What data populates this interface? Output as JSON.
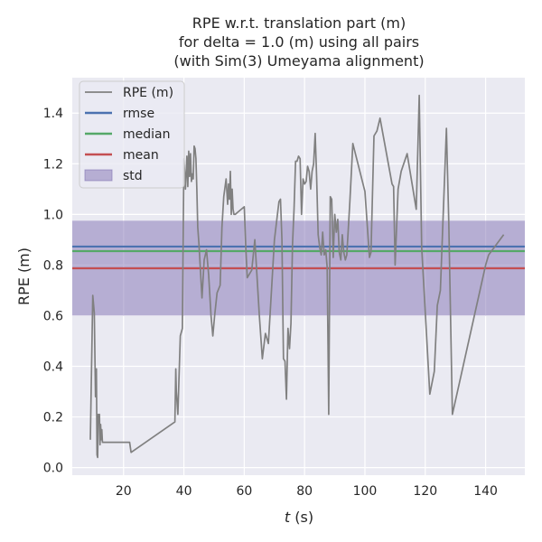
{
  "chart_data": {
    "type": "line",
    "title_lines": [
      "RPE w.r.t. translation part (m)",
      "for delta = 1.0 (m) using all pairs",
      "(with Sim(3) Umeyama alignment)"
    ],
    "xlabel_italic": "t",
    "xlabel_unit": " (s)",
    "ylabel": "RPE (m)",
    "xlim": [
      3,
      153
    ],
    "ylim": [
      -0.03,
      1.54
    ],
    "x_ticks": [
      20,
      40,
      60,
      80,
      100,
      120,
      140
    ],
    "x_tick_labels": [
      "20",
      "40",
      "60",
      "80",
      "100",
      "120",
      "140"
    ],
    "y_ticks": [
      0.0,
      0.2,
      0.4,
      0.6,
      0.8,
      1.0,
      1.2,
      1.4
    ],
    "y_tick_labels": [
      "0.0",
      "0.2",
      "0.4",
      "0.6",
      "0.8",
      "1.0",
      "1.2",
      "1.4"
    ],
    "grid": true,
    "legend_position": "upper-left",
    "legend": [
      {
        "label": "RPE (m)",
        "kind": "line",
        "color": "#808080"
      },
      {
        "label": "rmse",
        "kind": "line",
        "color": "#4c72b0"
      },
      {
        "label": "median",
        "kind": "line",
        "color": "#55a868"
      },
      {
        "label": "mean",
        "kind": "line",
        "color": "#c44e52"
      },
      {
        "label": "std",
        "kind": "patch",
        "color": "#8172b3"
      }
    ],
    "stats": {
      "rmse": 0.873,
      "median": 0.855,
      "mean": 0.787,
      "std": 0.187
    },
    "std_band": [
      0.6,
      0.975
    ],
    "series": [
      {
        "name": "RPE (m)",
        "color": "#808080",
        "x": [
          9.0,
          9.8,
          10.3,
          10.7,
          11.0,
          11.2,
          11.4,
          11.6,
          11.8,
          12.0,
          12.2,
          12.4,
          12.6,
          12.8,
          13.0,
          13.3,
          22.0,
          22.5,
          37.0,
          37.3,
          37.5,
          38.0,
          38.8,
          39.5,
          40.0,
          40.5,
          41.0,
          41.3,
          41.6,
          41.9,
          42.2,
          42.5,
          42.8,
          43.1,
          43.4,
          43.7,
          44.0,
          44.3,
          44.6,
          45.0,
          46.0,
          46.7,
          47.5,
          48.2,
          49.0,
          49.6,
          50.2,
          51.0,
          52.0,
          52.6,
          53.2,
          54.0,
          54.5,
          54.8,
          55.1,
          55.4,
          55.7,
          56.0,
          56.3,
          56.6,
          57.0,
          58.0,
          60.0,
          60.5,
          61.0,
          62.5,
          63.5,
          65.0,
          66.0,
          67.0,
          68.0,
          70.0,
          71.5,
          72.0,
          72.5,
          73.0,
          73.5,
          74.0,
          74.5,
          75.0,
          75.5,
          76.0,
          76.5,
          77.0,
          77.5,
          78.0,
          78.5,
          79.0,
          79.5,
          80.0,
          80.5,
          81.0,
          81.5,
          82.0,
          82.5,
          83.0,
          83.5,
          84.0,
          84.5,
          85.0,
          85.5,
          86.0,
          86.5,
          87.0,
          87.5,
          88.0,
          88.5,
          89.0,
          89.5,
          90.0,
          90.5,
          91.0,
          91.5,
          92.0,
          92.5,
          93.0,
          93.5,
          94.0,
          95.0,
          96.0,
          100.0,
          101.5,
          102.0,
          103.0,
          104.0,
          105.0,
          109.0,
          109.5,
          110.0,
          111.0,
          112.0,
          114.0,
          117.0,
          118.0,
          118.8,
          121.5,
          123.0,
          124.0,
          125.0,
          127.0,
          127.8,
          129.0,
          140.0,
          141.0,
          146.0
        ],
        "y": [
          0.11,
          0.68,
          0.61,
          0.28,
          0.39,
          0.05,
          0.04,
          0.21,
          0.18,
          0.21,
          0.09,
          0.17,
          0.11,
          0.15,
          0.1,
          0.1,
          0.1,
          0.06,
          0.18,
          0.39,
          0.3,
          0.21,
          0.52,
          0.55,
          1.22,
          1.1,
          1.23,
          1.11,
          1.25,
          1.15,
          1.24,
          1.13,
          1.16,
          1.14,
          1.27,
          1.26,
          1.22,
          1.1,
          0.95,
          0.88,
          0.67,
          0.82,
          0.86,
          0.76,
          0.6,
          0.52,
          0.6,
          0.69,
          0.72,
          0.95,
          1.07,
          1.14,
          1.04,
          1.12,
          1.06,
          1.17,
          1.0,
          1.1,
          1.02,
          1.0,
          1.0,
          1.01,
          1.03,
          0.87,
          0.75,
          0.78,
          0.9,
          0.6,
          0.43,
          0.53,
          0.49,
          0.9,
          1.05,
          1.06,
          0.9,
          0.43,
          0.42,
          0.27,
          0.55,
          0.47,
          0.57,
          0.88,
          1.02,
          1.21,
          1.21,
          1.23,
          1.22,
          1.0,
          1.14,
          1.12,
          1.13,
          1.19,
          1.17,
          1.1,
          1.17,
          1.2,
          1.32,
          1.15,
          0.92,
          0.87,
          0.84,
          0.93,
          0.84,
          0.86,
          0.79,
          0.21,
          1.07,
          1.06,
          0.83,
          1.0,
          0.93,
          0.98,
          0.85,
          0.82,
          0.92,
          0.85,
          0.82,
          0.84,
          1.05,
          1.28,
          1.09,
          0.83,
          0.85,
          1.31,
          1.33,
          1.38,
          1.12,
          1.11,
          0.8,
          1.1,
          1.17,
          1.24,
          1.02,
          1.47,
          0.87,
          0.29,
          0.38,
          0.64,
          0.7,
          1.34,
          0.97,
          0.21,
          0.8,
          0.84,
          0.92
        ]
      }
    ]
  }
}
